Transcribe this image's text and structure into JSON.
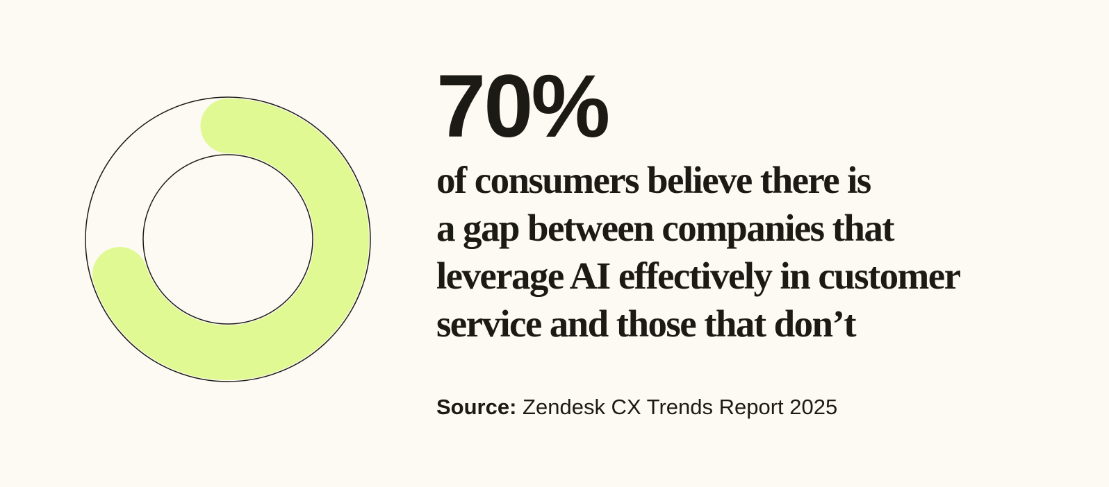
{
  "chart_data": {
    "type": "donut",
    "values": [
      70
    ],
    "value_labels": [
      "70%"
    ],
    "color": "#e0f993",
    "description": [
      "of consumers believe there is",
      "a gap between companies that",
      "leverage AI effectively in customer",
      "service and those that don’t"
    ],
    "source_label": "Source:",
    "source": "Zendesk CX Trends Report 2025"
  }
}
